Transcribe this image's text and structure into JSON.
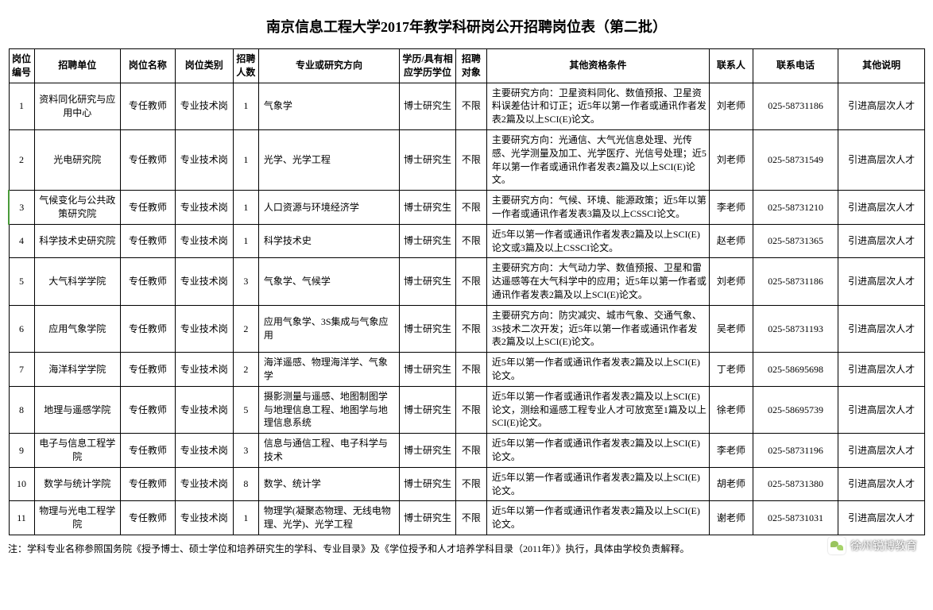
{
  "title": "南京信息工程大学2017年教学科研岗公开招聘岗位表（第二批）",
  "headers": {
    "id": "岗位编号",
    "unit": "招聘单位",
    "postName": "岗位名称",
    "postType": "岗位类别",
    "count": "招聘人数",
    "major": "专业或研究方向",
    "edu": "学历/具有相应学历学位",
    "target": "招聘对象",
    "qual": "其他资格条件",
    "contact": "联系人",
    "phone": "联系电话",
    "note": "其他说明"
  },
  "rows": [
    {
      "id": "1",
      "unit": "资料同化研究与应用中心",
      "postName": "专任教师",
      "postType": "专业技术岗",
      "count": "1",
      "major": "气象学",
      "edu": "博士研究生",
      "target": "不限",
      "qual": "主要研究方向：卫星资料同化、数值预报、卫星资料误差估计和订正；近5年以第一作者或通讯作者发表2篇及以上SCI(E)论文。",
      "contact": "刘老师",
      "phone": "025-58731186",
      "note": "引进高层次人才"
    },
    {
      "id": "2",
      "unit": "光电研究院",
      "postName": "专任教师",
      "postType": "专业技术岗",
      "count": "1",
      "major": "光学、光学工程",
      "edu": "博士研究生",
      "target": "不限",
      "qual": "主要研究方向：光通信、大气光信息处理、光传感、光学测量及加工、光学医疗、光信号处理；近5年以第一作者或通讯作者发表2篇及以上SCI(E)论文。",
      "contact": "刘老师",
      "phone": "025-58731549",
      "note": "引进高层次人才"
    },
    {
      "id": "3",
      "unit": "气候变化与公共政策研究院",
      "postName": "专任教师",
      "postType": "专业技术岗",
      "count": "1",
      "major": "人口资源与环境经济学",
      "edu": "博士研究生",
      "target": "不限",
      "qual": "主要研究方向：气候、环境、能源政策；近5年以第一作者或通讯作者发表3篇及以上CSSCI论文。",
      "contact": "李老师",
      "phone": "025-58731210",
      "note": "引进高层次人才"
    },
    {
      "id": "4",
      "unit": "科学技术史研究院",
      "postName": "专任教师",
      "postType": "专业技术岗",
      "count": "1",
      "major": "科学技术史",
      "edu": "博士研究生",
      "target": "不限",
      "qual": "近5年以第一作者或通讯作者发表2篇及以上SCI(E)论文或3篇及以上CSSCI论文。",
      "contact": "赵老师",
      "phone": "025-58731365",
      "note": "引进高层次人才"
    },
    {
      "id": "5",
      "unit": "大气科学学院",
      "postName": "专任教师",
      "postType": "专业技术岗",
      "count": "3",
      "major": "气象学、气候学",
      "edu": "博士研究生",
      "target": "不限",
      "qual": "主要研究方向：大气动力学、数值预报、卫星和雷达遥感等在大气科学中的应用；近5年以第一作者或通讯作者发表2篇及以上SCI(E)论文。",
      "contact": "刘老师",
      "phone": "025-58731186",
      "note": "引进高层次人才"
    },
    {
      "id": "6",
      "unit": "应用气象学院",
      "postName": "专任教师",
      "postType": "专业技术岗",
      "count": "2",
      "major": "应用气象学、3S集成与气象应用",
      "edu": "博士研究生",
      "target": "不限",
      "qual": "主要研究方向：防灾减灾、城市气象、交通气象、3S技术二次开发；近5年以第一作者或通讯作者发表2篇及以上SCI(E)论文。",
      "contact": "吴老师",
      "phone": "025-58731193",
      "note": "引进高层次人才"
    },
    {
      "id": "7",
      "unit": "海洋科学学院",
      "postName": "专任教师",
      "postType": "专业技术岗",
      "count": "2",
      "major": "海洋遥感、物理海洋学、气象学",
      "edu": "博士研究生",
      "target": "不限",
      "qual": "近5年以第一作者或通讯作者发表2篇及以上SCI(E)论文。",
      "contact": "丁老师",
      "phone": "025-58695698",
      "note": "引进高层次人才"
    },
    {
      "id": "8",
      "unit": "地理与遥感学院",
      "postName": "专任教师",
      "postType": "专业技术岗",
      "count": "5",
      "major": "摄影测量与遥感、地图制图学与地理信息工程、地图学与地理信息系统",
      "edu": "博士研究生",
      "target": "不限",
      "qual": "近5年以第一作者或通讯作者发表2篇及以上SCI(E)论文，测绘和遥感工程专业人才可放宽至1篇及以上SCI(E)论文。",
      "contact": "徐老师",
      "phone": "025-58695739",
      "note": "引进高层次人才"
    },
    {
      "id": "9",
      "unit": "电子与信息工程学院",
      "postName": "专任教师",
      "postType": "专业技术岗",
      "count": "3",
      "major": "信息与通信工程、电子科学与技术",
      "edu": "博士研究生",
      "target": "不限",
      "qual": "近5年以第一作者或通讯作者发表2篇及以上SCI(E)论文。",
      "contact": "李老师",
      "phone": "025-58731196",
      "note": "引进高层次人才"
    },
    {
      "id": "10",
      "unit": "数学与统计学院",
      "postName": "专任教师",
      "postType": "专业技术岗",
      "count": "8",
      "major": "数学、统计学",
      "edu": "博士研究生",
      "target": "不限",
      "qual": "近5年以第一作者或通讯作者发表2篇及以上SCI(E)论文。",
      "contact": "胡老师",
      "phone": "025-58731380",
      "note": "引进高层次人才"
    },
    {
      "id": "11",
      "unit": "物理与光电工程学院",
      "postName": "专任教师",
      "postType": "专业技术岗",
      "count": "1",
      "major": "物理学(凝聚态物理、无线电物理、光学)、光学工程",
      "edu": "博士研究生",
      "target": "不限",
      "qual": "近5年以第一作者或通讯作者发表2篇及以上SCI(E)论文。",
      "contact": "谢老师",
      "phone": "025-58731031",
      "note": "引进高层次人才"
    }
  ],
  "footnote": "注：学科专业名称参照国务院《授予博士、硕士学位和培养研究生的学科、专业目录》及《学位授予和人才培养学科目录（2011年）》执行，具体由学校负责解释。",
  "watermark": "徐州锐博教育",
  "style": {
    "title_fontsize": 18,
    "cell_fontsize": 12,
    "border_color": "#000000",
    "background": "#ffffff",
    "highlight_row_index": 2,
    "highlight_border_color": "#4a9b3a"
  }
}
